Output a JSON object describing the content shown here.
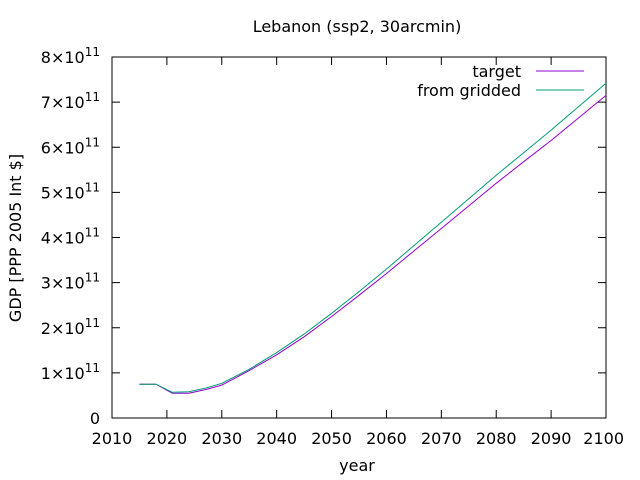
{
  "chart_data": {
    "type": "line",
    "title": "Lebanon (ssp2, 30arcmin)",
    "xlabel": "year",
    "ylabel": "GDP [PPP 2005 Int $]",
    "xlim": [
      2010,
      2100
    ],
    "ylim": [
      0,
      800000000000
    ],
    "x_ticks": [
      2010,
      2020,
      2030,
      2040,
      2050,
      2060,
      2070,
      2080,
      2090,
      2100
    ],
    "y_ticks": [
      {
        "value": 0,
        "mantissa": "0",
        "exp": ""
      },
      {
        "value": 100000000000,
        "mantissa": "1×10",
        "exp": "11"
      },
      {
        "value": 200000000000,
        "mantissa": "2×10",
        "exp": "11"
      },
      {
        "value": 300000000000,
        "mantissa": "3×10",
        "exp": "11"
      },
      {
        "value": 400000000000,
        "mantissa": "4×10",
        "exp": "11"
      },
      {
        "value": 500000000000,
        "mantissa": "5×10",
        "exp": "11"
      },
      {
        "value": 600000000000,
        "mantissa": "6×10",
        "exp": "11"
      },
      {
        "value": 700000000000,
        "mantissa": "7×10",
        "exp": "11"
      },
      {
        "value": 800000000000,
        "mantissa": "8×10",
        "exp": "11"
      }
    ],
    "grid": false,
    "legend_position": "top-right",
    "series": [
      {
        "name": "target",
        "color": "#9400d3",
        "x": [
          2015,
          2018,
          2021,
          2024,
          2027,
          2030,
          2035,
          2040,
          2045,
          2050,
          2055,
          2060,
          2065,
          2070,
          2075,
          2080,
          2085,
          2090,
          2095,
          2100
        ],
        "y": [
          75000000000,
          75000000000,
          55000000000,
          55000000000,
          63000000000,
          73000000000,
          105000000000,
          140000000000,
          180000000000,
          225000000000,
          272000000000,
          320000000000,
          370000000000,
          420000000000,
          470000000000,
          520000000000,
          568000000000,
          615000000000,
          665000000000,
          715000000000
        ]
      },
      {
        "name": "from gridded",
        "color": "#009e73",
        "x": [
          2015,
          2018,
          2021,
          2024,
          2027,
          2030,
          2035,
          2040,
          2045,
          2050,
          2055,
          2060,
          2065,
          2070,
          2075,
          2080,
          2085,
          2090,
          2095,
          2100
        ],
        "y": [
          75000000000,
          75000000000,
          57000000000,
          58000000000,
          66000000000,
          77000000000,
          108000000000,
          145000000000,
          186000000000,
          232000000000,
          280000000000,
          330000000000,
          382000000000,
          434000000000,
          486000000000,
          538000000000,
          588000000000,
          638000000000,
          690000000000,
          742000000000
        ]
      }
    ]
  }
}
